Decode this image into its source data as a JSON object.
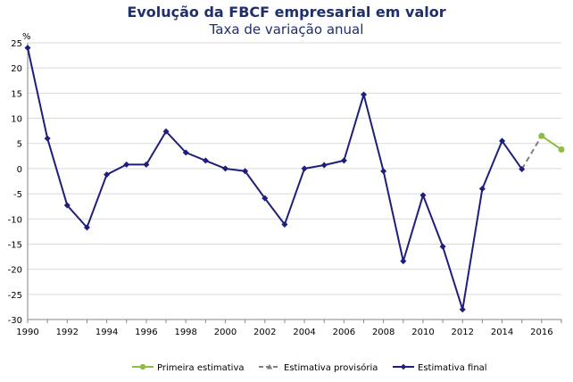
{
  "chart_data": {
    "type": "line",
    "title": "Evolução da FBCF empresarial em valor",
    "subtitle": "Taxa de variação anual",
    "ylabel": "%",
    "xlabel": "",
    "ylim": [
      -30,
      25
    ],
    "xlim": [
      1990,
      2017
    ],
    "yticks": [
      25,
      20,
      15,
      10,
      5,
      0,
      -5,
      -10,
      -15,
      -20,
      -25,
      -30
    ],
    "xticks": [
      1990,
      1992,
      1994,
      1996,
      1998,
      2000,
      2002,
      2004,
      2006,
      2008,
      2010,
      2012,
      2014,
      2016
    ],
    "grid": "horizontal",
    "legend_position": "bottom",
    "series": [
      {
        "name": "Primeira estimativa",
        "color": "#8fbc45",
        "style": "solid",
        "marker": "circle",
        "x": [
          2016,
          2017
        ],
        "values": [
          6.5,
          3.8
        ]
      },
      {
        "name": "Estimativa provisória",
        "color": "#7f7f7f",
        "style": "dashed",
        "marker": "triangle",
        "x": [
          2015,
          2016
        ],
        "values": [
          -0.1,
          6.5
        ]
      },
      {
        "name": "Estimativa final",
        "color": "#1f1f7a",
        "style": "solid",
        "marker": "diamond",
        "x": [
          1990,
          1991,
          1992,
          1993,
          1994,
          1995,
          1996,
          1997,
          1998,
          1999,
          2000,
          2001,
          2002,
          2003,
          2004,
          2005,
          2006,
          2007,
          2008,
          2009,
          2010,
          2011,
          2012,
          2013,
          2014,
          2015
        ],
        "values": [
          24,
          6,
          -7.3,
          -11.7,
          -1.2,
          0.8,
          0.8,
          7.4,
          3.2,
          1.6,
          0,
          -0.5,
          -5.9,
          -11.1,
          0,
          0.7,
          1.6,
          14.7,
          -0.5,
          -18.4,
          -5.3,
          -15.5,
          -28,
          -4,
          5.5,
          -0.1
        ]
      }
    ]
  }
}
